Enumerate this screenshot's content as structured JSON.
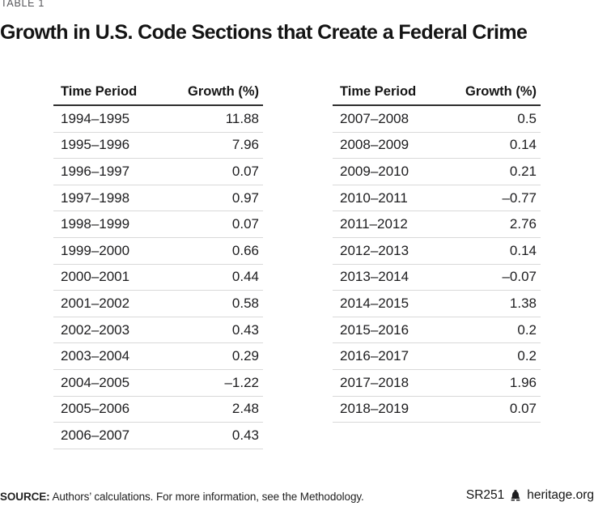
{
  "page": {
    "table_label": "TABLE 1",
    "title": "Growth in U.S. Code Sections that Create a Federal Crime"
  },
  "tables": {
    "left": {
      "headers": [
        "Time Period",
        "Growth (%)"
      ],
      "rows": [
        {
          "period": "1994–1995",
          "growth": "11.88"
        },
        {
          "period": "1995–1996",
          "growth": "7.96"
        },
        {
          "period": "1996–1997",
          "growth": "0.07"
        },
        {
          "period": "1997–1998",
          "growth": "0.97"
        },
        {
          "period": "1998–1999",
          "growth": "0.07"
        },
        {
          "period": "1999–2000",
          "growth": "0.66"
        },
        {
          "period": "2000–2001",
          "growth": "0.44"
        },
        {
          "period": "2001–2002",
          "growth": "0.58"
        },
        {
          "period": "2002–2003",
          "growth": "0.43"
        },
        {
          "period": "2003–2004",
          "growth": "0.29"
        },
        {
          "period": "2004–2005",
          "growth": "–1.22"
        },
        {
          "period": "2005–2006",
          "growth": "2.48"
        },
        {
          "period": "2006–2007",
          "growth": "0.43"
        }
      ]
    },
    "right": {
      "headers": [
        "Time Period",
        "Growth (%)"
      ],
      "rows": [
        {
          "period": "2007–2008",
          "growth": "0.5"
        },
        {
          "period": "2008–2009",
          "growth": "0.14"
        },
        {
          "period": "2009–2010",
          "growth": "0.21"
        },
        {
          "period": "2010–2011",
          "growth": "–0.77"
        },
        {
          "period": "2011–2012",
          "growth": "2.76"
        },
        {
          "period": "2012–2013",
          "growth": "0.14"
        },
        {
          "period": "2013–2014",
          "growth": "–0.07"
        },
        {
          "period": "2014–2015",
          "growth": "1.38"
        },
        {
          "period": "2015–2016",
          "growth": "0.2"
        },
        {
          "period": "2016–2017",
          "growth": "0.2"
        },
        {
          "period": "2017–2018",
          "growth": "1.96"
        },
        {
          "period": "2018–2019",
          "growth": "0.07"
        }
      ]
    }
  },
  "footer": {
    "source_label": "SOURCE:",
    "source_text": " Authors’ calculations. For more information, see the Methodology.",
    "report_id": "SR251",
    "site": "heritage.org",
    "logo_icon": "heritage-bell-icon"
  },
  "colors": {
    "title_text": "#141414",
    "eyebrow_text": "#56565a",
    "header_rule": "#2e2e2e",
    "row_divider": "#d9d9d9",
    "cell_text": "#1d1d1f",
    "background": "#ffffff"
  },
  "chart_data": {
    "type": "table",
    "title": "Growth in U.S. Code Sections that Create a Federal Crime",
    "columns": [
      "Time Period",
      "Growth (%)"
    ],
    "rows": [
      [
        "1994–1995",
        11.88
      ],
      [
        "1995–1996",
        7.96
      ],
      [
        "1996–1997",
        0.07
      ],
      [
        "1997–1998",
        0.97
      ],
      [
        "1998–1999",
        0.07
      ],
      [
        "1999–2000",
        0.66
      ],
      [
        "2000–2001",
        0.44
      ],
      [
        "2001–2002",
        0.58
      ],
      [
        "2002–2003",
        0.43
      ],
      [
        "2003–2004",
        0.29
      ],
      [
        "2004–2005",
        -1.22
      ],
      [
        "2005–2006",
        2.48
      ],
      [
        "2006–2007",
        0.43
      ],
      [
        "2007–2008",
        0.5
      ],
      [
        "2008–2009",
        0.14
      ],
      [
        "2009–2010",
        0.21
      ],
      [
        "2010–2011",
        -0.77
      ],
      [
        "2011–2012",
        2.76
      ],
      [
        "2012–2013",
        0.14
      ],
      [
        "2013–2014",
        -0.07
      ],
      [
        "2014–2015",
        1.38
      ],
      [
        "2015–2016",
        0.2
      ],
      [
        "2016–2017",
        0.2
      ],
      [
        "2017–2018",
        1.96
      ],
      [
        "2018–2019",
        0.07
      ]
    ]
  }
}
